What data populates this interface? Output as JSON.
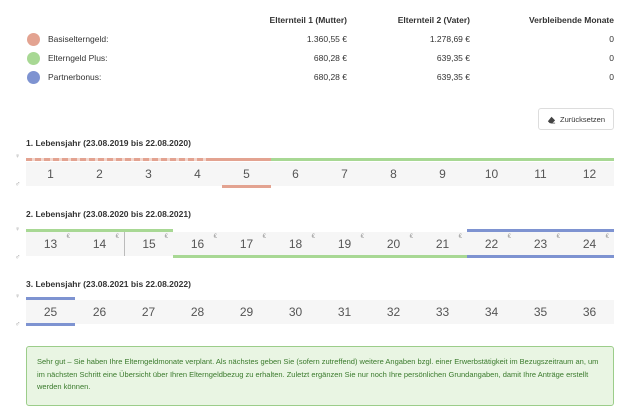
{
  "summary": {
    "headers": [
      "Elternteil 1 (Mutter)",
      "Elternteil 2 (Vater)",
      "Verbleibende Monate"
    ],
    "rows": [
      {
        "label": "Basiselterngeld:",
        "color": "#e3a391",
        "values": [
          "1.360,55 €",
          "1.278,69 €",
          "0"
        ]
      },
      {
        "label": "Elterngeld Plus:",
        "color": "#a8d894",
        "values": [
          "680,28 €",
          "639,35 €",
          "0"
        ]
      },
      {
        "label": "Partnerbonus:",
        "color": "#7e93d1",
        "values": [
          "680,28 €",
          "639,35 €",
          "0"
        ]
      }
    ]
  },
  "reset_button": {
    "label": "Zurücksetzen",
    "icon": "eraser-icon"
  },
  "colors": {
    "basis": "#e3a391",
    "plus": "#a8d894",
    "bonus": "#7e93d1"
  },
  "years": [
    {
      "title": "1. Lebensjahr (23.08.2019 bis 22.08.2020)",
      "months": [
        "1",
        "2",
        "3",
        "4",
        "5",
        "6",
        "7",
        "8",
        "9",
        "10",
        "11",
        "12"
      ],
      "euro": []
    },
    {
      "title": "2. Lebensjahr (23.08.2020 bis 22.08.2021)",
      "months": [
        "13",
        "14",
        "15",
        "16",
        "17",
        "18",
        "19",
        "20",
        "21",
        "22",
        "23",
        "24"
      ],
      "euro": [
        0,
        1,
        2,
        3,
        4,
        5,
        6,
        7,
        8,
        9,
        10,
        11
      ]
    },
    {
      "title": "3. Lebensjahr (23.08.2021 bis 22.08.2022)",
      "months": [
        "25",
        "26",
        "27",
        "28",
        "29",
        "30",
        "31",
        "32",
        "33",
        "34",
        "35",
        "36"
      ],
      "euro": []
    }
  ],
  "alert": {
    "text": "Sehr gut – Sie haben Ihre Elterngeldmonate verplant. Als nächstes geben Sie (sofern zutreffend) weitere Angaben bzgl. einer Erwerbstätigkeit im Bezugszeitraum an, um im nächsten Schritt eine Übersicht über Ihren Elterngeldbezug zu erhalten. Zuletzt ergänzen Sie nur noch Ihre persönlichen Grundangaben, damit Ihre Anträge erstellt werden können."
  },
  "icons": {
    "mother": "mother-icon",
    "father": "father-icon",
    "euro": "€"
  }
}
